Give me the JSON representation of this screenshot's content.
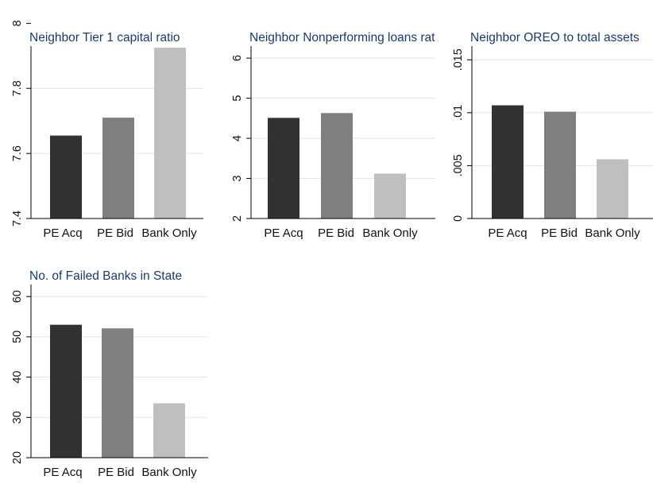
{
  "chart_data": [
    {
      "type": "bar",
      "title": "Neighbor Tier 1 capital ratio",
      "categories": [
        "PE Acq",
        "PE Bid",
        "Bank Only"
      ],
      "values": [
        7.655,
        7.71,
        7.925
      ],
      "ylim": [
        7.4,
        7.93
      ],
      "yticks": [
        "7.4",
        "7.6",
        "7.8",
        "8"
      ],
      "colors": [
        "#323232",
        "#7f7f7f",
        "#bfbfbf"
      ],
      "grid": true
    },
    {
      "type": "bar",
      "title": "Neighbor Nonperforming loans rat",
      "categories": [
        "PE Acq",
        "PE Bid",
        "Bank Only"
      ],
      "values": [
        4.51,
        4.63,
        3.12
      ],
      "ylim": [
        2,
        6.3
      ],
      "yticks": [
        "2",
        "3",
        "4",
        "5",
        "6"
      ],
      "colors": [
        "#323232",
        "#7f7f7f",
        "#bfbfbf"
      ],
      "grid": true
    },
    {
      "type": "bar",
      "title": "Neighbor OREO to total assets",
      "categories": [
        "PE Acq",
        "PE Bid",
        "Bank Only"
      ],
      "values": [
        0.0107,
        0.0101,
        0.0056
      ],
      "ylim": [
        0,
        0.0163
      ],
      "yticks": [
        "0",
        ".005",
        ".01",
        ".015"
      ],
      "colors": [
        "#323232",
        "#7f7f7f",
        "#bfbfbf"
      ],
      "grid": true
    },
    {
      "type": "bar",
      "title": "No. of Failed Banks in State",
      "categories": [
        "PE Acq",
        "PE Bid",
        "Bank Only"
      ],
      "values": [
        53,
        52.1,
        33.5
      ],
      "ylim": [
        20,
        63
      ],
      "yticks": [
        "20",
        "30",
        "40",
        "50",
        "60"
      ],
      "colors": [
        "#323232",
        "#7f7f7f",
        "#bfbfbf"
      ],
      "grid": true
    }
  ]
}
